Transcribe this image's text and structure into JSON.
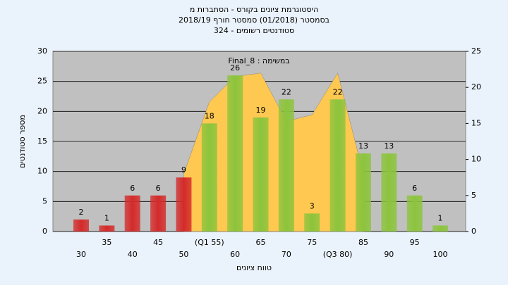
{
  "chart_data": {
    "type": "bar",
    "title": [
      "היסטוגרמת ציונים בקורס - הסתברות מ",
      "בסמסטר  (01/2018)  סמסטר חורף 2018/19",
      "סטודנטים רשומים - 324"
    ],
    "annotation": "Final_8 : במשימה",
    "xlabel": "טווח ציונים",
    "ylabel": "מספר סטודנטים",
    "categories": [
      "30",
      "35",
      "40",
      "45",
      "50",
      "(Q1 55)",
      "60",
      "65",
      "70",
      "75",
      "(Q3 80)",
      "85",
      "90",
      "95",
      "100"
    ],
    "series": [
      {
        "values": [
          2,
          1,
          6,
          6,
          9,
          18,
          26,
          19,
          22,
          3,
          22,
          13,
          13,
          6,
          1
        ],
        "colors": [
          "#d42a2a",
          "#d42a2a",
          "#d42a2a",
          "#d42a2a",
          "#d42a2a",
          "#8cc43c",
          "#8cc43c",
          "#8cc43c",
          "#8cc43c",
          "#8cc43c",
          "#8cc43c",
          "#8cc43c",
          "#8cc43c",
          "#8cc43c",
          "#8cc43c"
        ]
      },
      {
        "type": "area",
        "axis": "y2",
        "color": "#ffc850",
        "values": [
          null,
          null,
          null,
          null,
          8,
          18,
          21.5,
          22,
          15.3,
          16.2,
          22,
          8,
          null,
          null,
          null
        ]
      }
    ],
    "ylim": [
      0,
      30
    ],
    "yticks": [
      0,
      5,
      10,
      15,
      20,
      25,
      30
    ],
    "y2lim": [
      0,
      25
    ],
    "y2ticks": [
      0,
      5,
      10,
      15,
      20,
      25
    ],
    "grid": true
  }
}
